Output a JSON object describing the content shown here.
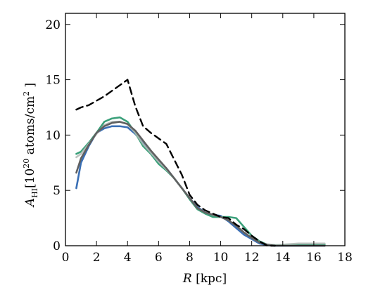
{
  "chart_data": {
    "type": "line",
    "title": "",
    "xlabel": {
      "symbol": "R",
      "unit": "[kpc]"
    },
    "ylabel": {
      "symbol": "A",
      "subscript": "HI",
      "prefix": "[10",
      "exponent": "20",
      "middle": " atoms/cm",
      "exp2": "2",
      "suffix": " ]"
    },
    "xlim": [
      0,
      18
    ],
    "ylim": [
      0,
      21
    ],
    "xticks": [
      0,
      2,
      4,
      6,
      8,
      10,
      12,
      14,
      16,
      18
    ],
    "yticks": [
      0,
      5,
      10,
      15,
      20
    ],
    "grid": false,
    "x": [
      0.7,
      1.0,
      1.5,
      2.0,
      2.5,
      3.0,
      3.5,
      4.0,
      4.5,
      5.0,
      5.5,
      6.0,
      6.5,
      7.0,
      7.5,
      8.0,
      8.5,
      9.0,
      9.5,
      10.0,
      10.5,
      11.0,
      11.5,
      12.0,
      12.5,
      13.0,
      13.5,
      14.0,
      15.0,
      16.0,
      16.7
    ],
    "series": [
      {
        "color": "#3a6fb5",
        "style": "solid",
        "values": [
          5.2,
          7.5,
          9.0,
          10.2,
          10.6,
          10.8,
          10.8,
          10.7,
          10.1,
          9.3,
          8.5,
          7.7,
          7.0,
          6.1,
          5.2,
          4.3,
          3.5,
          3.0,
          2.8,
          2.7,
          2.2,
          1.6,
          1.0,
          0.6,
          0.2,
          0.05,
          0.0,
          0.0,
          0.0,
          0.0,
          0.0
        ]
      },
      {
        "color": "#3aa07a",
        "style": "solid",
        "values": [
          8.3,
          8.5,
          9.3,
          10.2,
          11.2,
          11.5,
          11.6,
          11.2,
          10.2,
          9.0,
          8.3,
          7.4,
          6.8,
          6.1,
          5.2,
          4.2,
          3.3,
          2.9,
          2.6,
          2.6,
          2.6,
          2.5,
          1.7,
          0.9,
          0.4,
          0.1,
          0.05,
          0.05,
          0.1,
          0.1,
          0.1
        ]
      },
      {
        "color": "#b0b8b4",
        "style": "solid",
        "values": [
          8.0,
          8.3,
          9.2,
          10.1,
          10.9,
          11.2,
          11.2,
          11.0,
          10.2,
          9.2,
          8.4,
          7.6,
          6.9,
          6.1,
          5.2,
          4.3,
          3.4,
          3.0,
          2.8,
          2.6,
          2.3,
          1.8,
          1.2,
          0.7,
          0.3,
          0.1,
          0.05,
          0.1,
          0.2,
          0.2,
          0.2
        ]
      },
      {
        "color": "#606060",
        "style": "solid",
        "values": [
          6.6,
          7.9,
          9.1,
          10.2,
          10.8,
          11.1,
          11.2,
          11.0,
          10.4,
          9.5,
          8.6,
          7.8,
          7.0,
          6.1,
          5.2,
          4.3,
          3.4,
          3.0,
          2.8,
          2.6,
          2.3,
          1.8,
          1.2,
          0.7,
          0.3,
          0.1,
          0.0,
          0.0,
          0.0,
          0.0,
          0.0
        ]
      },
      {
        "color": "#000000",
        "style": "dashed",
        "values": [
          12.3,
          12.5,
          12.7,
          13.1,
          13.5,
          14.0,
          14.5,
          15.0,
          12.6,
          10.8,
          10.2,
          9.7,
          9.2,
          7.8,
          6.4,
          4.6,
          3.7,
          3.2,
          2.9,
          2.6,
          2.5,
          1.9,
          1.5,
          0.9,
          0.4,
          0.0,
          0.0,
          null,
          null,
          null,
          null
        ]
      }
    ]
  }
}
